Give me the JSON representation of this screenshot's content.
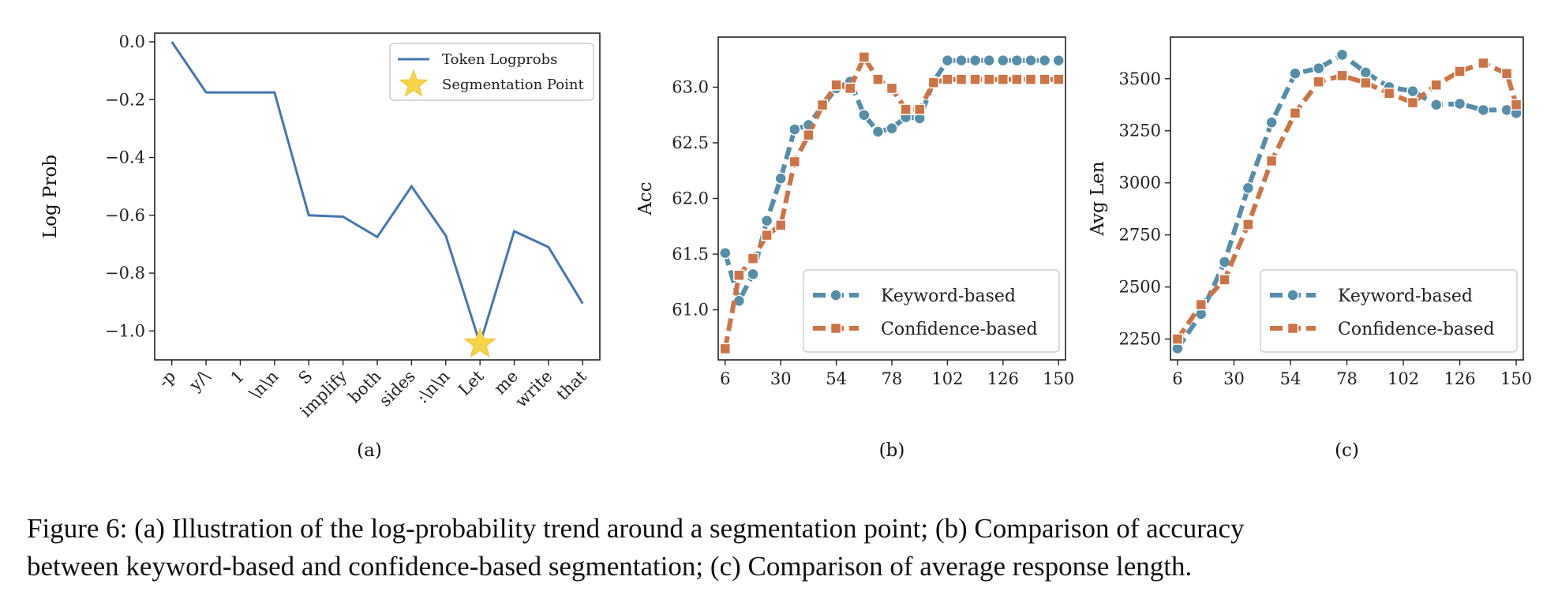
{
  "chart_data": [
    {
      "type": "line",
      "panel_label": "(a)",
      "ylabel": "Log Prob",
      "xlabel": "",
      "categories": [
        "-p",
        "y/\\",
        "1",
        "\\n\\n",
        "S",
        "implify",
        "both",
        "sides",
        ":\\n\\n",
        "Let",
        "me",
        "write",
        "that"
      ],
      "ylim": [
        -1.1,
        0.03
      ],
      "yticks": [
        0.0,
        -0.2,
        -0.4,
        -0.6,
        -0.8,
        -1.0
      ],
      "ytick_labels": [
        "0.0",
        "−0.2",
        "−0.4",
        "−0.6",
        "−0.8",
        "−1.0"
      ],
      "series": [
        {
          "name": "Token Logprobs",
          "color": "#4477b2",
          "values": [
            0.0,
            -0.175,
            -0.175,
            -0.175,
            -0.6,
            -0.605,
            -0.675,
            -0.5,
            -0.67,
            -1.045,
            -0.655,
            -0.71,
            -0.905
          ]
        }
      ],
      "markers": [
        {
          "name": "Segmentation Point",
          "category": "Let",
          "value": -1.045,
          "color": "#f5d547",
          "shape": "star"
        }
      ],
      "legend": "top-right",
      "grid": false
    },
    {
      "type": "line",
      "panel_label": "(b)",
      "ylabel": "Acc",
      "xlabel": "",
      "xlim": [
        3,
        153
      ],
      "ylim": [
        60.55,
        63.45
      ],
      "xticks": [
        6,
        30,
        54,
        78,
        102,
        126,
        150
      ],
      "yticks": [
        61.0,
        61.5,
        62.0,
        62.5,
        63.0
      ],
      "ytick_labels": [
        "61.0",
        "61.5",
        "62.0",
        "62.5",
        "63.0"
      ],
      "series": [
        {
          "name": "Keyword-based",
          "color": "#568ea9",
          "marker": "circle",
          "x": [
            6,
            12,
            18,
            24,
            30,
            36,
            42,
            48,
            54,
            60,
            66,
            72,
            78,
            84,
            90,
            96,
            102,
            108,
            114,
            120,
            126,
            132,
            138,
            144,
            150
          ],
          "values": [
            61.51,
            61.08,
            61.32,
            61.8,
            62.18,
            62.62,
            62.66,
            62.83,
            62.99,
            63.05,
            62.75,
            62.6,
            62.63,
            62.73,
            62.72,
            63.05,
            63.24,
            63.24,
            63.24,
            63.24,
            63.24,
            63.24,
            63.24,
            63.24,
            63.24
          ]
        },
        {
          "name": "Confidence-based",
          "color": "#cd7446",
          "marker": "square",
          "x": [
            6,
            12,
            18,
            24,
            30,
            36,
            42,
            48,
            54,
            60,
            66,
            72,
            78,
            84,
            90,
            96,
            102,
            108,
            114,
            120,
            126,
            132,
            138,
            144,
            150
          ],
          "values": [
            60.65,
            61.31,
            61.46,
            61.67,
            61.76,
            62.33,
            62.57,
            62.84,
            63.02,
            62.99,
            63.27,
            63.07,
            62.99,
            62.8,
            62.8,
            63.04,
            63.07,
            63.07,
            63.07,
            63.07,
            63.07,
            63.07,
            63.07,
            63.07,
            63.07
          ]
        }
      ],
      "legend": "lower-right",
      "grid": false
    },
    {
      "type": "line",
      "panel_label": "(c)",
      "ylabel": "Avg Len",
      "xlabel": "",
      "xlim": [
        3,
        153
      ],
      "ylim": [
        2150,
        3700
      ],
      "xticks": [
        6,
        30,
        54,
        78,
        102,
        126,
        150
      ],
      "yticks": [
        2250,
        2500,
        2750,
        3000,
        3250,
        3500
      ],
      "ytick_labels": [
        "2250",
        "2500",
        "2750",
        "3000",
        "3250",
        "3500"
      ],
      "series": [
        {
          "name": "Keyword-based",
          "color": "#568ea9",
          "marker": "circle",
          "x": [
            6,
            16,
            26,
            36,
            46,
            56,
            66,
            76,
            86,
            96,
            106,
            116,
            126,
            136,
            146,
            150
          ],
          "values": [
            2205,
            2370,
            2620,
            2975,
            3290,
            3525,
            3550,
            3615,
            3530,
            3460,
            3440,
            3375,
            3380,
            3350,
            3350,
            3335
          ]
        },
        {
          "name": "Confidence-based",
          "color": "#cd7446",
          "marker": "square",
          "x": [
            6,
            16,
            26,
            36,
            46,
            56,
            66,
            76,
            86,
            96,
            106,
            116,
            126,
            136,
            146,
            150
          ],
          "values": [
            2250,
            2415,
            2535,
            2800,
            3105,
            3335,
            3485,
            3515,
            3480,
            3430,
            3385,
            3470,
            3535,
            3575,
            3525,
            3375
          ]
        }
      ],
      "legend": "lower-right",
      "grid": false
    }
  ],
  "caption": {
    "line1": "Figure 6: (a) Illustration of the log-probability trend around a segmentation point; (b) Comparison of accuracy",
    "line2": "between keyword-based and confidence-based segmentation; (c) Comparison of average response length."
  }
}
